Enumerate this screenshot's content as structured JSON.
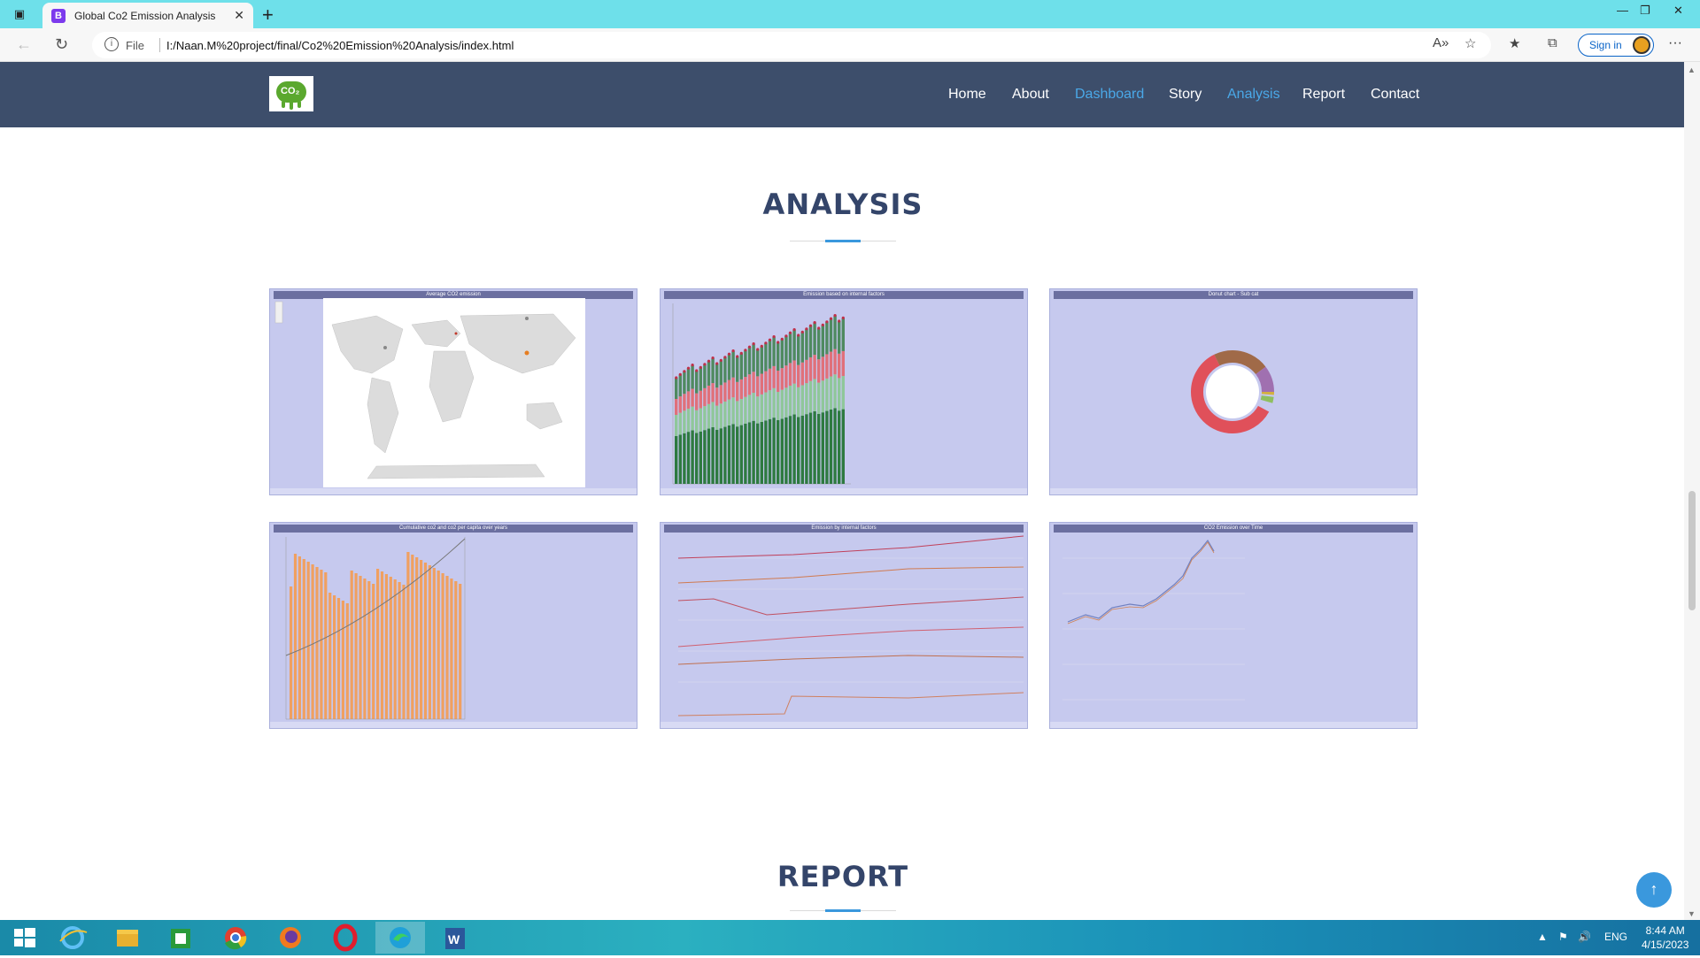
{
  "browser": {
    "tab_title": "Global Co2 Emission Analysis",
    "tab_favicon": "B",
    "file_label": "File",
    "url": "I:/Naan.M%20project/final/Co2%20Emission%20Analysis/index.html",
    "signin_label": "Sign in"
  },
  "site": {
    "logo_text": "CO₂",
    "nav": [
      "Home",
      "About",
      "Dashboard",
      "Story",
      "Analysis",
      "Report",
      "Contact"
    ],
    "active_nav": [
      "Dashboard",
      "Analysis"
    ],
    "accent_color": "#4aa8e8",
    "header_color": "#3d4e6b"
  },
  "analysis": {
    "title": "ANALYSIS",
    "tiles": [
      {
        "title": "Average CO2 emission",
        "kind": "map"
      },
      {
        "title": "Emission based on internal factors",
        "kind": "stacked-bar"
      },
      {
        "title": "Donut chart - Sub cat",
        "kind": "donut"
      },
      {
        "title": "Cumulative co2 and co2 per capita over years",
        "kind": "bar-line"
      },
      {
        "title": "Emission by internal factors",
        "kind": "multi-line"
      },
      {
        "title": "CO2 Emission over Time",
        "kind": "line"
      }
    ]
  },
  "report": {
    "title": "REPORT"
  },
  "taskbar": {
    "tray_lang": "ENG",
    "time": "8:44 AM",
    "date": "4/15/2023"
  }
}
